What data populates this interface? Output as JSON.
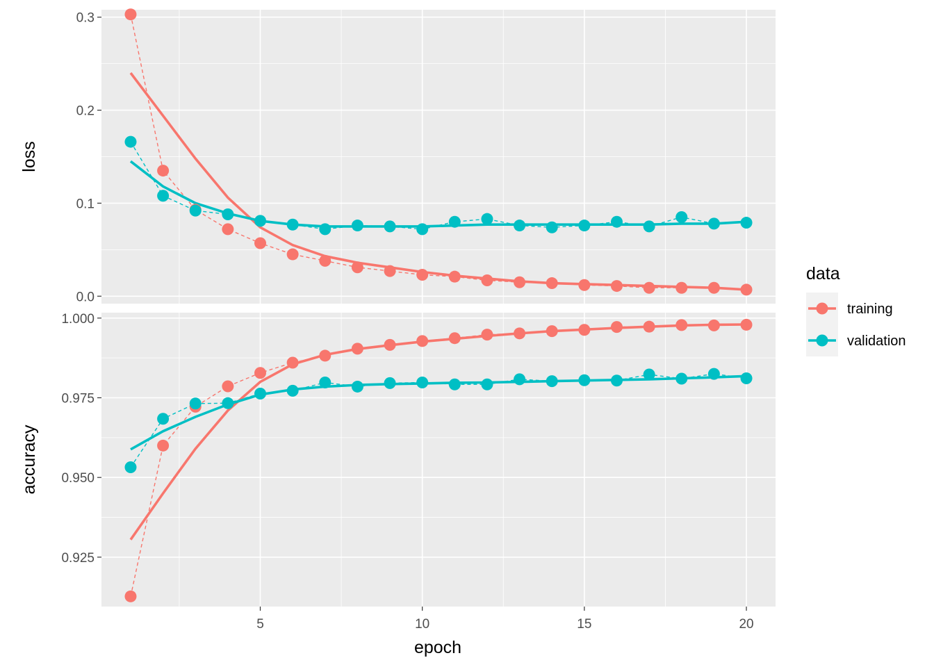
{
  "chart_data": {
    "type": "line",
    "xlabel": "epoch",
    "x": [
      1,
      2,
      3,
      4,
      5,
      6,
      7,
      8,
      9,
      10,
      11,
      12,
      13,
      14,
      15,
      16,
      17,
      18,
      19,
      20
    ],
    "x_ticks": [
      5,
      10,
      15,
      20
    ],
    "x_tick_labels": [
      "5",
      "10",
      "15",
      "20"
    ],
    "xlim": [
      0.1,
      20.9
    ],
    "legend": {
      "title": "data",
      "position": "right",
      "entries": [
        {
          "label": "training",
          "color": "#f8766d"
        },
        {
          "label": "validation",
          "color": "#00bfc4"
        }
      ]
    },
    "panels": [
      {
        "name": "loss",
        "ylabel": "loss",
        "ylim": [
          -0.008,
          0.308
        ],
        "y_ticks": [
          0.0,
          0.1,
          0.2,
          0.3
        ],
        "y_tick_labels": [
          "0.0",
          "0.1",
          "0.2",
          "0.3"
        ],
        "series": [
          {
            "name": "training",
            "color": "#f8766d",
            "values": [
              0.303,
              0.135,
              0.093,
              0.072,
              0.057,
              0.045,
              0.038,
              0.031,
              0.027,
              0.023,
              0.021,
              0.017,
              0.015,
              0.014,
              0.012,
              0.011,
              0.009,
              0.009,
              0.009,
              0.007
            ]
          },
          {
            "name": "validation",
            "color": "#00bfc4",
            "values": [
              0.166,
              0.108,
              0.092,
              0.088,
              0.081,
              0.077,
              0.072,
              0.076,
              0.075,
              0.072,
              0.08,
              0.083,
              0.076,
              0.074,
              0.076,
              0.08,
              0.075,
              0.085,
              0.078,
              0.079
            ]
          }
        ],
        "smooth": [
          {
            "name": "training",
            "values": [
              0.24,
              0.194,
              0.148,
              0.106,
              0.074,
              0.055,
              0.043,
              0.036,
              0.031,
              0.026,
              0.022,
              0.019,
              0.016,
              0.014,
              0.013,
              0.012,
              0.011,
              0.01,
              0.009,
              0.007
            ]
          },
          {
            "name": "validation",
            "values": [
              0.145,
              0.118,
              0.1,
              0.089,
              0.081,
              0.077,
              0.075,
              0.075,
              0.075,
              0.075,
              0.076,
              0.077,
              0.077,
              0.077,
              0.077,
              0.077,
              0.077,
              0.078,
              0.078,
              0.08
            ]
          }
        ]
      },
      {
        "name": "accuracy",
        "ylabel": "accuracy",
        "ylim": [
          0.9095,
          1.0017
        ],
        "y_ticks": [
          0.925,
          0.95,
          0.975,
          1.0
        ],
        "y_tick_labels": [
          "0.925",
          "0.950",
          "0.975",
          "1.000"
        ],
        "series": [
          {
            "name": "training",
            "color": "#f8766d",
            "values": [
              0.9127,
              0.96,
              0.9722,
              0.9786,
              0.9828,
              0.986,
              0.9882,
              0.9904,
              0.9916,
              0.9928,
              0.9937,
              0.9948,
              0.9952,
              0.9959,
              0.9963,
              0.9972,
              0.9973,
              0.9978,
              0.9977,
              0.9979
            ]
          },
          {
            "name": "validation",
            "color": "#00bfc4",
            "values": [
              0.9532,
              0.9684,
              0.9732,
              0.9733,
              0.9763,
              0.9772,
              0.9798,
              0.9785,
              0.9796,
              0.9798,
              0.9792,
              0.9792,
              0.9808,
              0.9802,
              0.9805,
              0.9804,
              0.9823,
              0.981,
              0.9825,
              0.9811
            ]
          }
        ],
        "smooth": [
          {
            "name": "training",
            "values": [
              0.9305,
              0.945,
              0.959,
              0.971,
              0.98,
              0.9855,
              0.9885,
              0.9903,
              0.9915,
              0.9926,
              0.9935,
              0.9944,
              0.9952,
              0.9959,
              0.9964,
              0.9969,
              0.9973,
              0.9977,
              0.9979,
              0.998
            ]
          },
          {
            "name": "validation",
            "values": [
              0.9588,
              0.9645,
              0.969,
              0.9729,
              0.976,
              0.9776,
              0.9785,
              0.979,
              0.9793,
              0.9795,
              0.9797,
              0.9798,
              0.98,
              0.9802,
              0.9804,
              0.9806,
              0.9808,
              0.9811,
              0.9814,
              0.9818
            ]
          }
        ]
      }
    ]
  }
}
